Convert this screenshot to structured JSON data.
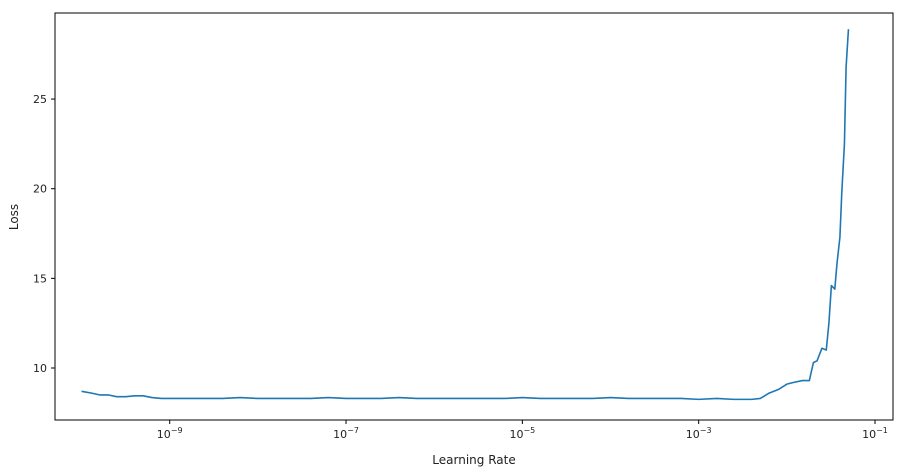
{
  "chart_data": {
    "type": "line",
    "title": "",
    "xlabel": "Learning Rate",
    "ylabel": "Loss",
    "x_scale": "log",
    "xlim": [
      5e-11,
      0.16
    ],
    "ylim": [
      7.1,
      29.8
    ],
    "xticks": [
      {
        "value": 1e-09,
        "base": "10",
        "exp": "−9"
      },
      {
        "value": 1e-07,
        "base": "10",
        "exp": "−7"
      },
      {
        "value": 1e-05,
        "base": "10",
        "exp": "−5"
      },
      {
        "value": 0.001,
        "base": "10",
        "exp": "−3"
      },
      {
        "value": 0.1,
        "base": "10",
        "exp": "−1"
      }
    ],
    "yticks": [
      10,
      15,
      20,
      25
    ],
    "grid": false,
    "color": "#1f77b4",
    "series": [
      {
        "x": [
          1e-10,
          1.3e-10,
          1.6e-10,
          2e-10,
          2.5e-10,
          3.2e-10,
          4e-10,
          5e-10,
          6.3e-10,
          8e-10,
          1e-09,
          1.6e-09,
          2.5e-09,
          4e-09,
          6.3e-09,
          1e-08,
          1.6e-08,
          2.5e-08,
          4e-08,
          6.3e-08,
          1e-07,
          1.6e-07,
          2.5e-07,
          4e-07,
          6.3e-07,
          1e-06,
          1.6e-06,
          2.5e-06,
          4e-06,
          6.3e-06,
          1e-05,
          1.6e-05,
          2.5e-05,
          4e-05,
          6.3e-05,
          0.0001,
          0.00016,
          0.00025,
          0.0004,
          0.00063,
          0.001,
          0.0016,
          0.0025,
          0.004,
          0.005,
          0.0063,
          0.008,
          0.01,
          0.012,
          0.015,
          0.018,
          0.02,
          0.022,
          0.025,
          0.028,
          0.03,
          0.032,
          0.035,
          0.037,
          0.04,
          0.042,
          0.045,
          0.047,
          0.05
        ],
        "y": [
          8.7,
          8.6,
          8.5,
          8.5,
          8.4,
          8.4,
          8.45,
          8.45,
          8.35,
          8.3,
          8.3,
          8.3,
          8.3,
          8.3,
          8.35,
          8.3,
          8.3,
          8.3,
          8.3,
          8.35,
          8.3,
          8.3,
          8.3,
          8.35,
          8.3,
          8.3,
          8.3,
          8.3,
          8.3,
          8.3,
          8.35,
          8.3,
          8.3,
          8.3,
          8.3,
          8.35,
          8.3,
          8.3,
          8.3,
          8.3,
          8.25,
          8.3,
          8.25,
          8.25,
          8.3,
          8.6,
          8.8,
          9.1,
          9.2,
          9.3,
          9.3,
          10.3,
          10.4,
          11.1,
          11.0,
          12.5,
          14.6,
          14.4,
          15.8,
          17.3,
          19.8,
          22.5,
          26.8,
          28.9
        ]
      }
    ]
  }
}
